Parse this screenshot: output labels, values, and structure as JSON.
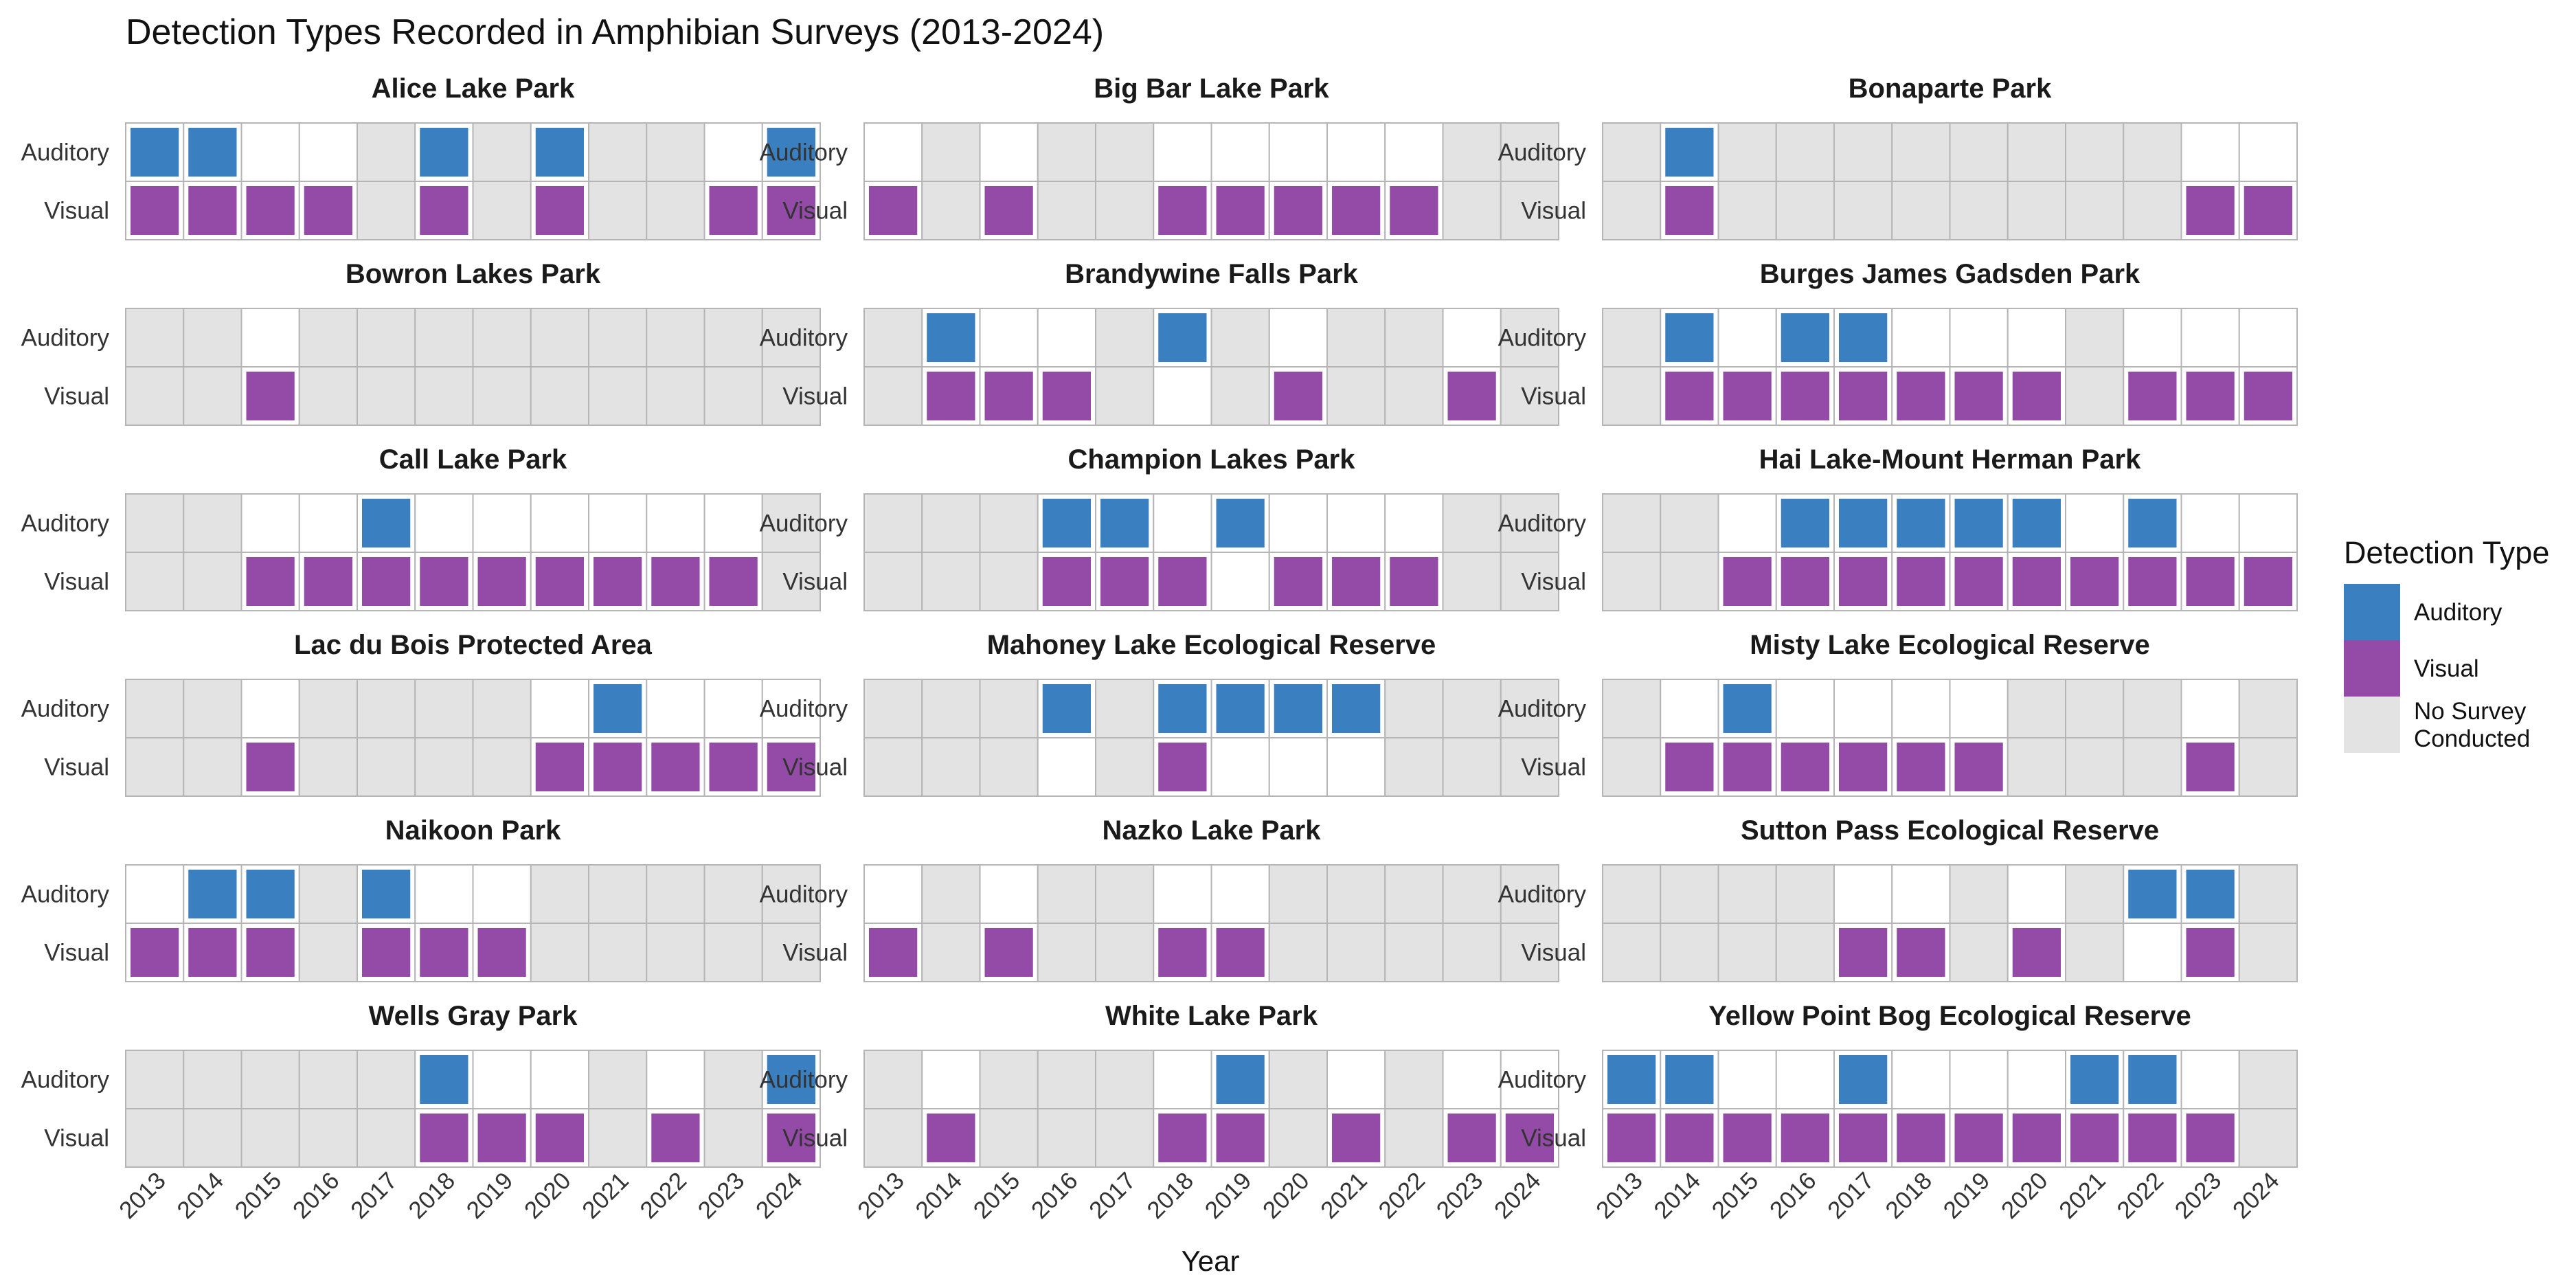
{
  "chart_data": {
    "type": "heatmap",
    "title": "Detection Types Recorded in Amphibian Surveys (2013-2024)",
    "xlabel": "Year",
    "years": [
      "2013",
      "2014",
      "2015",
      "2016",
      "2017",
      "2018",
      "2019",
      "2020",
      "2021",
      "2022",
      "2023",
      "2024"
    ],
    "rows": [
      "Auditory",
      "Visual"
    ],
    "status_codes": {
      "1": "detected",
      "0": "surveyed, not detected",
      "-1": "No Survey Conducted"
    },
    "colors": {
      "Auditory": "#3A7FBF",
      "Visual": "#944BA8",
      "No Survey Conducted": "#E3E3E3",
      "not_detected": "#FFFFFF",
      "grid": "#B5B5B5"
    },
    "legend": {
      "title": "Detection Type",
      "items": [
        {
          "label": "Auditory",
          "key": "Auditory"
        },
        {
          "label": "Visual",
          "key": "Visual"
        },
        {
          "label": "No Survey\nConducted",
          "key": "No Survey Conducted"
        }
      ]
    },
    "panels": [
      {
        "name": "Alice Lake Park",
        "auditory": [
          1,
          1,
          0,
          0,
          -1,
          1,
          -1,
          1,
          -1,
          -1,
          0,
          1
        ],
        "visual": [
          1,
          1,
          1,
          1,
          -1,
          1,
          -1,
          1,
          -1,
          -1,
          1,
          1
        ]
      },
      {
        "name": "Big Bar Lake Park",
        "auditory": [
          0,
          -1,
          0,
          -1,
          -1,
          0,
          0,
          0,
          0,
          0,
          -1,
          -1
        ],
        "visual": [
          1,
          -1,
          1,
          -1,
          -1,
          1,
          1,
          1,
          1,
          1,
          -1,
          -1
        ]
      },
      {
        "name": "Bonaparte Park",
        "auditory": [
          -1,
          1,
          -1,
          -1,
          -1,
          -1,
          -1,
          -1,
          -1,
          -1,
          0,
          0
        ],
        "visual": [
          -1,
          1,
          -1,
          -1,
          -1,
          -1,
          -1,
          -1,
          -1,
          -1,
          1,
          1
        ]
      },
      {
        "name": "Bowron Lakes Park",
        "auditory": [
          -1,
          -1,
          0,
          -1,
          -1,
          -1,
          -1,
          -1,
          -1,
          -1,
          -1,
          -1
        ],
        "visual": [
          -1,
          -1,
          1,
          -1,
          -1,
          -1,
          -1,
          -1,
          -1,
          -1,
          -1,
          -1
        ]
      },
      {
        "name": "Brandywine Falls Park",
        "auditory": [
          -1,
          1,
          0,
          0,
          -1,
          1,
          -1,
          0,
          -1,
          -1,
          0,
          -1
        ],
        "visual": [
          -1,
          1,
          1,
          1,
          -1,
          0,
          -1,
          1,
          -1,
          -1,
          1,
          -1
        ]
      },
      {
        "name": "Burges James Gadsden Park",
        "auditory": [
          -1,
          1,
          0,
          1,
          1,
          0,
          0,
          0,
          -1,
          0,
          0,
          0
        ],
        "visual": [
          -1,
          1,
          1,
          1,
          1,
          1,
          1,
          1,
          -1,
          1,
          1,
          1
        ]
      },
      {
        "name": "Call Lake Park",
        "auditory": [
          -1,
          -1,
          0,
          0,
          1,
          0,
          0,
          0,
          0,
          0,
          0,
          -1
        ],
        "visual": [
          -1,
          -1,
          1,
          1,
          1,
          1,
          1,
          1,
          1,
          1,
          1,
          -1
        ]
      },
      {
        "name": "Champion Lakes Park",
        "auditory": [
          -1,
          -1,
          -1,
          1,
          1,
          0,
          1,
          0,
          0,
          0,
          -1,
          -1
        ],
        "visual": [
          -1,
          -1,
          -1,
          1,
          1,
          1,
          0,
          1,
          1,
          1,
          -1,
          -1
        ]
      },
      {
        "name": "Hai Lake-Mount Herman Park",
        "auditory": [
          -1,
          -1,
          0,
          1,
          1,
          1,
          1,
          1,
          0,
          1,
          0,
          0
        ],
        "visual": [
          -1,
          -1,
          1,
          1,
          1,
          1,
          1,
          1,
          1,
          1,
          1,
          1
        ]
      },
      {
        "name": "Lac du Bois Protected Area",
        "auditory": [
          -1,
          -1,
          0,
          -1,
          -1,
          -1,
          -1,
          0,
          1,
          0,
          0,
          0
        ],
        "visual": [
          -1,
          -1,
          1,
          -1,
          -1,
          -1,
          -1,
          1,
          1,
          1,
          1,
          1
        ]
      },
      {
        "name": "Mahoney Lake Ecological Reserve",
        "auditory": [
          -1,
          -1,
          -1,
          1,
          -1,
          1,
          1,
          1,
          1,
          -1,
          -1,
          -1
        ],
        "visual": [
          -1,
          -1,
          -1,
          0,
          -1,
          1,
          0,
          0,
          0,
          -1,
          -1,
          -1
        ]
      },
      {
        "name": "Misty Lake Ecological Reserve",
        "auditory": [
          -1,
          0,
          1,
          0,
          0,
          0,
          0,
          -1,
          -1,
          -1,
          0,
          -1
        ],
        "visual": [
          -1,
          1,
          1,
          1,
          1,
          1,
          1,
          -1,
          -1,
          -1,
          1,
          -1
        ]
      },
      {
        "name": "Naikoon Park",
        "auditory": [
          0,
          1,
          1,
          -1,
          1,
          0,
          0,
          -1,
          -1,
          -1,
          -1,
          -1
        ],
        "visual": [
          1,
          1,
          1,
          -1,
          1,
          1,
          1,
          -1,
          -1,
          -1,
          -1,
          -1
        ]
      },
      {
        "name": "Nazko Lake Park",
        "auditory": [
          0,
          -1,
          0,
          -1,
          -1,
          0,
          0,
          -1,
          -1,
          -1,
          -1,
          -1
        ],
        "visual": [
          1,
          -1,
          1,
          -1,
          -1,
          1,
          1,
          -1,
          -1,
          -1,
          -1,
          -1
        ]
      },
      {
        "name": "Sutton Pass Ecological Reserve",
        "auditory": [
          -1,
          -1,
          -1,
          -1,
          0,
          0,
          -1,
          0,
          -1,
          1,
          1,
          -1
        ],
        "visual": [
          -1,
          -1,
          -1,
          -1,
          1,
          1,
          -1,
          1,
          -1,
          0,
          1,
          -1
        ]
      },
      {
        "name": "Wells Gray Park",
        "auditory": [
          -1,
          -1,
          -1,
          -1,
          -1,
          1,
          0,
          0,
          -1,
          0,
          -1,
          1
        ],
        "visual": [
          -1,
          -1,
          -1,
          -1,
          -1,
          1,
          1,
          1,
          -1,
          1,
          -1,
          1
        ]
      },
      {
        "name": "White Lake Park",
        "auditory": [
          -1,
          0,
          -1,
          -1,
          -1,
          0,
          1,
          -1,
          0,
          -1,
          0,
          0
        ],
        "visual": [
          -1,
          1,
          -1,
          -1,
          -1,
          1,
          1,
          -1,
          1,
          -1,
          1,
          1
        ]
      },
      {
        "name": "Yellow Point Bog Ecological Reserve",
        "auditory": [
          1,
          1,
          0,
          0,
          1,
          0,
          0,
          0,
          1,
          1,
          0,
          -1
        ],
        "visual": [
          1,
          1,
          1,
          1,
          1,
          1,
          1,
          1,
          1,
          1,
          1,
          -1
        ]
      }
    ]
  }
}
